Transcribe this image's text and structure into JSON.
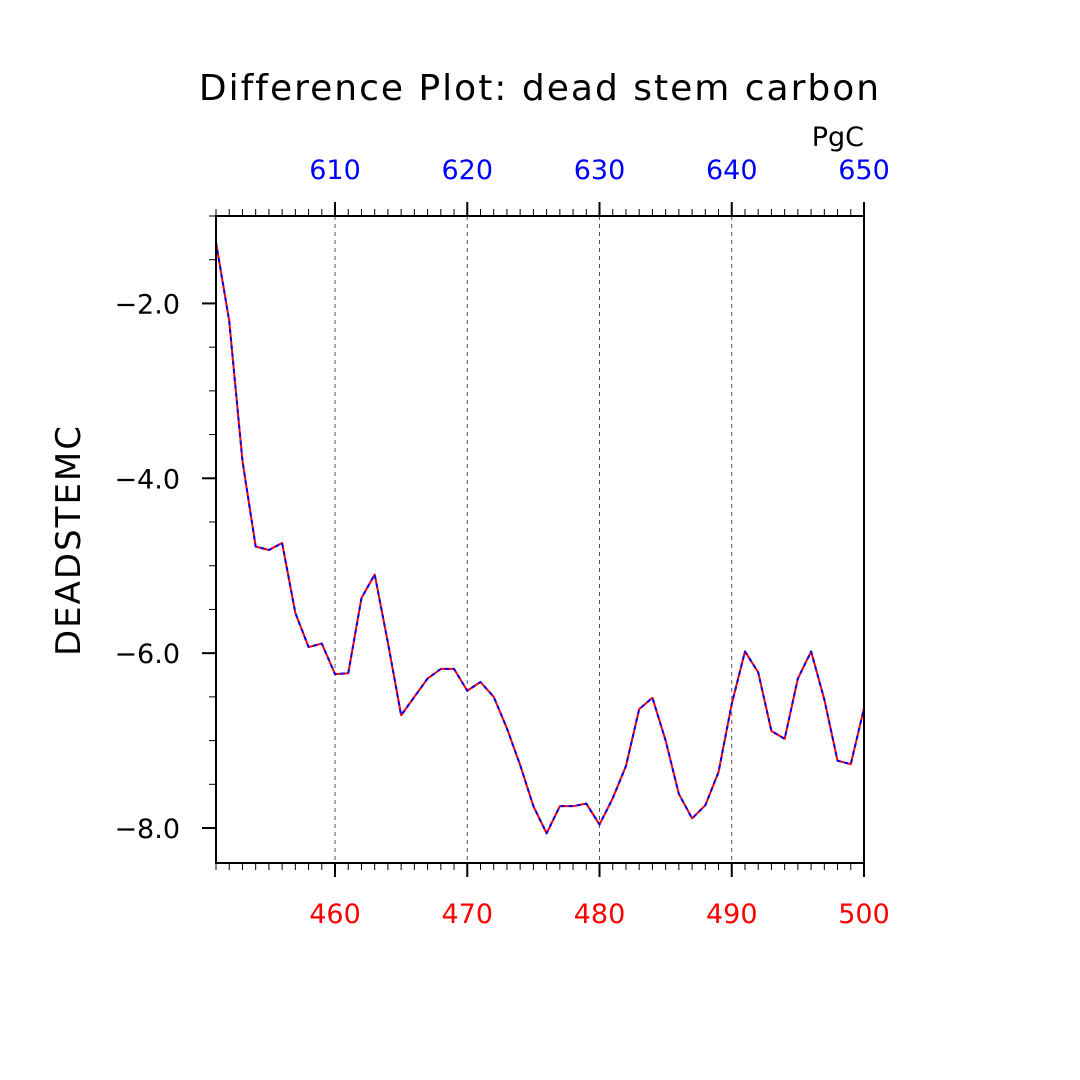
{
  "chart_data": {
    "type": "line",
    "title": "Difference Plot: dead stem carbon",
    "ylabel": "DEADSTEMC",
    "top_axis_unit": "PgC",
    "xlim": [
      451,
      500
    ],
    "ylim": [
      -8.4,
      -1.0
    ],
    "top_xlim": [
      601,
      650
    ],
    "grid": "vertical dashed at major ticks",
    "bottom_ticks": [
      {
        "value": 460,
        "label": "460"
      },
      {
        "value": 470,
        "label": "470"
      },
      {
        "value": 480,
        "label": "480"
      },
      {
        "value": 490,
        "label": "490"
      },
      {
        "value": 500,
        "label": "500"
      }
    ],
    "top_ticks": [
      {
        "value": 610,
        "label": "610"
      },
      {
        "value": 620,
        "label": "620"
      },
      {
        "value": 630,
        "label": "630"
      },
      {
        "value": 640,
        "label": "640"
      },
      {
        "value": 650,
        "label": "650"
      }
    ],
    "y_ticks": [
      {
        "value": -2.0,
        "label": "−2.0"
      },
      {
        "value": -4.0,
        "label": "−4.0"
      },
      {
        "value": -6.0,
        "label": "−6.0"
      },
      {
        "value": -8.0,
        "label": "−8.0"
      }
    ],
    "x": [
      451,
      452,
      453,
      454,
      455,
      456,
      457,
      458,
      459,
      460,
      461,
      462,
      463,
      464,
      465,
      466,
      467,
      468,
      469,
      470,
      471,
      472,
      473,
      474,
      475,
      476,
      477,
      478,
      479,
      480,
      481,
      482,
      483,
      484,
      485,
      486,
      487,
      488,
      489,
      490,
      491,
      492,
      493,
      494,
      495,
      496,
      497,
      498,
      499,
      500
    ],
    "series": [
      {
        "color": "#ff0000",
        "style": "solid",
        "values": [
          -1.3,
          -2.2,
          -3.8,
          -4.78,
          -4.82,
          -4.74,
          -5.54,
          -5.93,
          -5.89,
          -6.24,
          -6.23,
          -5.37,
          -5.1,
          -5.88,
          -6.71,
          -6.5,
          -6.29,
          -6.18,
          -6.18,
          -6.43,
          -6.33,
          -6.5,
          -6.86,
          -7.28,
          -7.75,
          -8.06,
          -7.75,
          -7.75,
          -7.72,
          -7.96,
          -7.66,
          -7.29,
          -6.64,
          -6.51,
          -7.0,
          -7.61,
          -7.89,
          -7.74,
          -7.36,
          -6.58,
          -5.98,
          -6.22,
          -6.89,
          -6.98,
          -6.29,
          -5.98,
          -6.53,
          -7.23,
          -7.27,
          -6.63
        ]
      },
      {
        "color": "#0000ff",
        "style": "dashed",
        "values": [
          -1.3,
          -2.2,
          -3.8,
          -4.78,
          -4.82,
          -4.74,
          -5.54,
          -5.93,
          -5.89,
          -6.24,
          -6.23,
          -5.37,
          -5.1,
          -5.88,
          -6.71,
          -6.5,
          -6.29,
          -6.18,
          -6.18,
          -6.43,
          -6.33,
          -6.5,
          -6.86,
          -7.28,
          -7.75,
          -8.06,
          -7.75,
          -7.75,
          -7.72,
          -7.96,
          -7.66,
          -7.29,
          -6.64,
          -6.51,
          -7.0,
          -7.61,
          -7.89,
          -7.74,
          -7.36,
          -6.58,
          -5.98,
          -6.22,
          -6.89,
          -6.98,
          -6.29,
          -5.98,
          -6.53,
          -7.23,
          -7.27,
          -6.63
        ]
      }
    ]
  }
}
